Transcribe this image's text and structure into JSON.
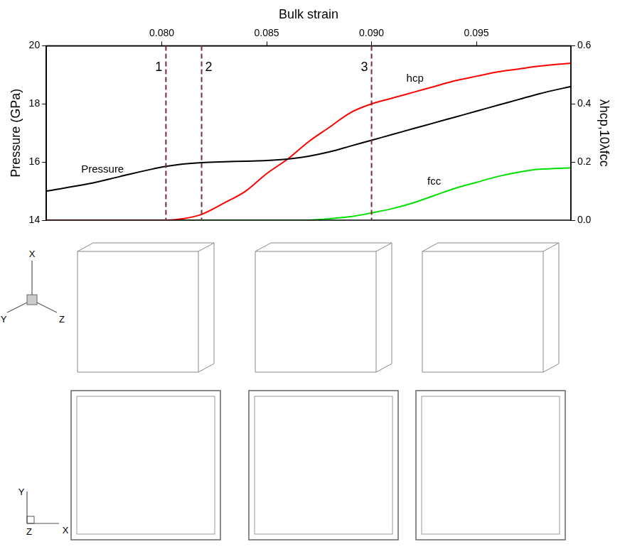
{
  "chart_data": {
    "type": "line",
    "x_label": "Bulk strain",
    "y_label": "Pressure (GPa)",
    "y2_label": "λhcp,10λfcc",
    "x": [
      0.0745,
      0.0765,
      0.078,
      0.0795,
      0.0802,
      0.081,
      0.0819,
      0.083,
      0.084,
      0.085,
      0.086,
      0.087,
      0.088,
      0.089,
      0.09,
      0.091,
      0.092,
      0.093,
      0.094,
      0.095,
      0.096,
      0.097,
      0.098,
      0.0995
    ],
    "series": [
      {
        "name": "Pressure",
        "color": "#000000",
        "values": [
          15.0,
          15.25,
          15.5,
          15.75,
          15.85,
          15.93,
          15.98,
          16.01,
          16.03,
          16.05,
          16.1,
          16.2,
          16.35,
          16.55,
          16.75,
          16.95,
          17.15,
          17.35,
          17.55,
          17.75,
          17.95,
          18.15,
          18.35,
          18.6
        ]
      },
      {
        "name": "hcp",
        "color": "#ff0000",
        "axis": "y2",
        "values": [
          0,
          0,
          0,
          0,
          0,
          0.005,
          0.02,
          0.06,
          0.1,
          0.16,
          0.21,
          0.27,
          0.32,
          0.37,
          0.4,
          0.42,
          0.44,
          0.46,
          0.48,
          0.495,
          0.51,
          0.52,
          0.53,
          0.54
        ]
      },
      {
        "name": "fcc",
        "color": "#00e000",
        "axis": "y2",
        "values": [
          0,
          0,
          0,
          0,
          0,
          0,
          0,
          0,
          0,
          0,
          0,
          0,
          0.005,
          0.012,
          0.025,
          0.04,
          0.06,
          0.085,
          0.11,
          0.13,
          0.15,
          0.165,
          0.175,
          0.18
        ]
      }
    ],
    "xlim": [
      0.0745,
      0.0995
    ],
    "xticks": [
      {
        "value": 0.08,
        "label": "0.080"
      },
      {
        "value": 0.085,
        "label": "0.085"
      },
      {
        "value": 0.09,
        "label": "0.090"
      },
      {
        "value": 0.095,
        "label": "0.095"
      }
    ],
    "ylim": [
      14,
      20
    ],
    "yticks": [
      14,
      16,
      18,
      20
    ],
    "y2lim": [
      0,
      0.6
    ],
    "y2ticks": [
      {
        "value": 0,
        "label": "0.0"
      },
      0.2,
      0.4,
      0.6
    ],
    "markers": [
      {
        "x": 0.0802,
        "label": "1"
      },
      {
        "x": 0.0819,
        "label": "2"
      },
      {
        "x": 0.09,
        "label": "3"
      }
    ],
    "grid": false
  },
  "snapshot_axes": {
    "perspective": [
      "X",
      "Y",
      "Z"
    ],
    "plane": [
      "X",
      "Y",
      "Z"
    ]
  }
}
